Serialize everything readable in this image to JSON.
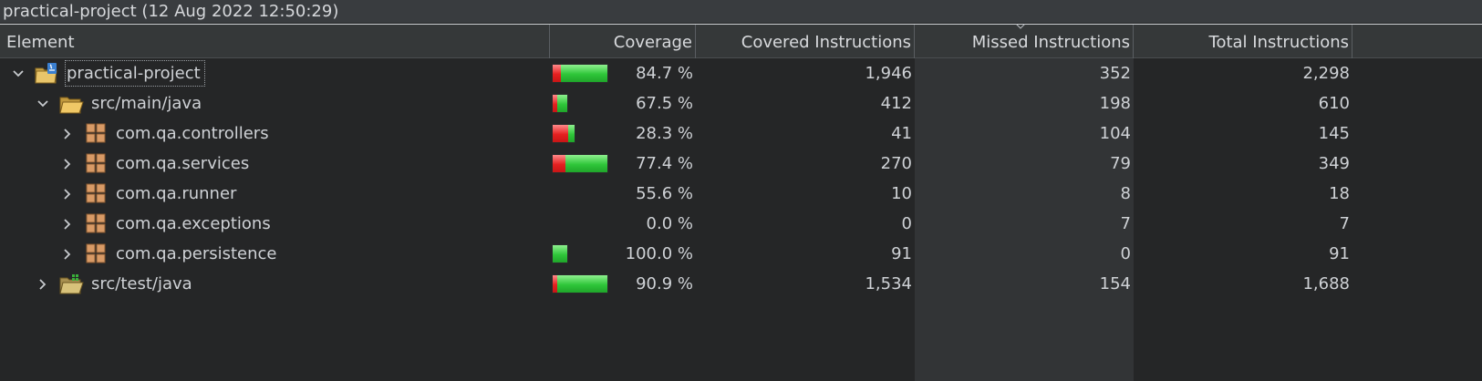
{
  "window": {
    "title": "practical-project (12 Aug 2022 12:50:29)"
  },
  "columns": {
    "element": "Element",
    "coverage": "Coverage",
    "covered": "Covered Instructions",
    "missed": "Missed Instructions",
    "total": "Total Instructions"
  },
  "colors": {
    "covered": "#2fc63a",
    "missed": "#e42020",
    "background": "#252627",
    "header": "#353839"
  },
  "rows": [
    {
      "name": "practical-project",
      "icon": "java-project-icon",
      "expanded": true,
      "level": 0,
      "coverage": "84.7 %",
      "covered": "1,946",
      "missed": "352",
      "total": "2,298",
      "coverage_fraction": 0.847,
      "bar_scale": 1.0
    },
    {
      "name": "src/main/java",
      "icon": "source-folder-icon",
      "expanded": true,
      "level": 1,
      "coverage": "67.5 %",
      "covered": "412",
      "missed": "198",
      "total": "610",
      "coverage_fraction": 0.675,
      "bar_scale": 0.265
    },
    {
      "name": "com.qa.controllers",
      "icon": "package-icon",
      "expanded": false,
      "level": 2,
      "coverage": "28.3 %",
      "covered": "41",
      "missed": "104",
      "total": "145",
      "coverage_fraction": 0.283,
      "bar_scale": 0.4
    },
    {
      "name": "com.qa.services",
      "icon": "package-icon",
      "expanded": false,
      "level": 2,
      "coverage": "77.4 %",
      "covered": "270",
      "missed": "79",
      "total": "349",
      "coverage_fraction": 0.774,
      "bar_scale": 1.0
    },
    {
      "name": "com.qa.runner",
      "icon": "package-icon",
      "expanded": false,
      "level": 2,
      "coverage": "55.6 %",
      "covered": "10",
      "missed": "8",
      "total": "18",
      "coverage_fraction": 0.556,
      "bar_scale": 0.0
    },
    {
      "name": "com.qa.exceptions",
      "icon": "package-icon",
      "expanded": false,
      "level": 2,
      "coverage": "0.0 %",
      "covered": "0",
      "missed": "7",
      "total": "7",
      "coverage_fraction": 0.0,
      "bar_scale": 0.0
    },
    {
      "name": "com.qa.persistence",
      "icon": "package-icon",
      "expanded": false,
      "level": 2,
      "coverage": "100.0 %",
      "covered": "91",
      "missed": "0",
      "total": "91",
      "coverage_fraction": 1.0,
      "bar_scale": 0.26
    },
    {
      "name": "src/test/java",
      "icon": "test-source-folder-icon",
      "expanded": false,
      "level": 1,
      "coverage": "90.9 %",
      "covered": "1,534",
      "missed": "154",
      "total": "1,688",
      "coverage_fraction": 0.909,
      "bar_scale": 1.0
    }
  ]
}
